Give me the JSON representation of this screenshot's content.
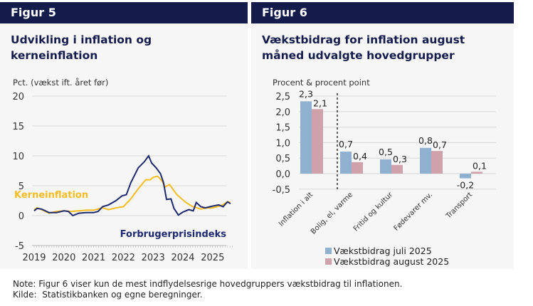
{
  "panels": [
    {
      "header": "Figur 5",
      "title": "Udvikling i inflation og kerneinflation"
    },
    {
      "header": "Figur 6",
      "title": "Vækstbidrag for inflation august måned udvalgte hovedgrupper"
    }
  ],
  "chart_data": [
    {
      "type": "line",
      "ylabel": "Pct. (vækst ift. året før)",
      "ylim": [
        -5,
        20
      ],
      "yticks": [
        "20",
        "15",
        "10",
        "5",
        "0",
        "-5"
      ],
      "xticks": [
        "2019",
        "2020",
        "2021",
        "2022",
        "2023",
        "2024",
        "2025"
      ],
      "grid": true,
      "series": [
        {
          "name": "Forbrugerprisindeks",
          "color": "#1f2a6e",
          "x": [
            2019.0,
            2019.1,
            2019.25,
            2019.5,
            2019.75,
            2020.0,
            2020.15,
            2020.3,
            2020.5,
            2020.75,
            2021.0,
            2021.15,
            2021.3,
            2021.5,
            2021.75,
            2021.95,
            2022.1,
            2022.25,
            2022.5,
            2022.7,
            2022.85,
            2022.95,
            2023.1,
            2023.25,
            2023.35,
            2023.45,
            2023.6,
            2023.7,
            2023.85,
            2024.0,
            2024.2,
            2024.35,
            2024.45,
            2024.6,
            2024.75,
            2025.0,
            2025.2,
            2025.35,
            2025.5,
            2025.6
          ],
          "y": [
            0.8,
            1.2,
            1.1,
            0.5,
            0.5,
            0.8,
            0.7,
            0.0,
            0.4,
            0.5,
            0.5,
            0.7,
            1.5,
            1.8,
            2.5,
            3.3,
            3.5,
            5.5,
            8.0,
            9.0,
            10.0,
            8.8,
            8.0,
            7.0,
            5.5,
            2.7,
            2.8,
            1.2,
            0.1,
            0.6,
            1.0,
            0.8,
            2.2,
            1.5,
            1.3,
            1.6,
            1.8,
            1.5,
            2.3,
            2.0
          ]
        },
        {
          "name": "Kerneinflation",
          "color": "#f5bd22",
          "x": [
            2019.0,
            2019.1,
            2019.25,
            2019.5,
            2019.75,
            2020.0,
            2020.25,
            2020.5,
            2020.75,
            2021.0,
            2021.3,
            2021.5,
            2021.75,
            2022.0,
            2022.25,
            2022.5,
            2022.75,
            2022.9,
            2023.0,
            2023.15,
            2023.3,
            2023.4,
            2023.55,
            2023.8,
            2024.1,
            2024.3,
            2024.6,
            2024.8,
            2025.0,
            2025.3,
            2025.5,
            2025.6
          ],
          "y": [
            1.0,
            1.3,
            1.0,
            0.4,
            0.7,
            0.8,
            0.7,
            0.8,
            0.9,
            0.9,
            1.3,
            1.0,
            1.3,
            1.5,
            2.8,
            4.5,
            6.0,
            6.0,
            6.4,
            6.6,
            5.8,
            4.8,
            5.2,
            3.5,
            2.2,
            1.6,
            1.1,
            1.3,
            1.3,
            1.7,
            2.3,
            2.2
          ]
        }
      ]
    },
    {
      "type": "bar",
      "ylabel": "Procent & procent point",
      "ylim": [
        -0.5,
        2.5
      ],
      "yticks": [
        "2,5",
        "2,0",
        "1,5",
        "1,0",
        "0,5",
        "0,0",
        "-0,5"
      ],
      "categories": [
        "Inflation i alt",
        "Bolig, el, varme",
        "Fritid og kultur",
        "Fødevarer mv.",
        "Transport"
      ],
      "grid": true,
      "legend": "bottom",
      "series": [
        {
          "name": "Vækstbidrag juli 2025",
          "color": "#8fb1cf",
          "values": [
            2.33,
            0.71,
            0.46,
            0.83,
            -0.15
          ],
          "labels": [
            "2,3",
            "0,7",
            "0,5",
            "0,8",
            "-0,2"
          ]
        },
        {
          "name": "Vækstbidrag august 2025",
          "color": "#cfa1aa",
          "values": [
            2.08,
            0.37,
            0.28,
            0.73,
            0.06
          ],
          "labels": [
            "2,1",
            "0,4",
            "0,3",
            "0,7",
            "0,1"
          ]
        }
      ]
    }
  ],
  "notes": {
    "note_label": "Note:",
    "note": "Figur 6 viser kun de mest indflydelsesrige hovedgruppers vækstbidrag til inflationen.",
    "source_label": "Kilde:",
    "source": "Statistikbanken og egne beregninger."
  }
}
